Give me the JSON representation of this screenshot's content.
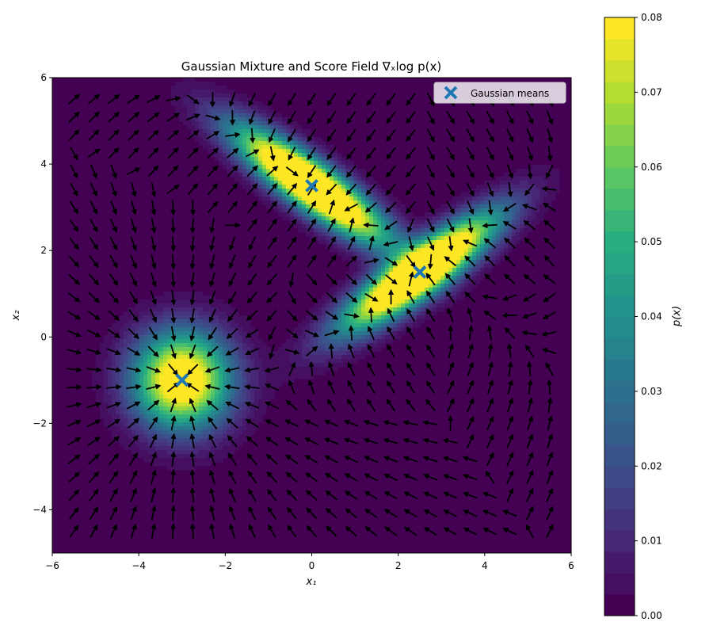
{
  "chart_data": {
    "type": "contour",
    "title": "Gaussian Mixture and Score Field ∇ₓlog p(x)",
    "xlabel": "x₁",
    "ylabel": "x₂",
    "xlim": [
      -6,
      6
    ],
    "ylim": [
      -5,
      6
    ],
    "xticks": [
      "−6",
      "−4",
      "−2",
      "0",
      "2",
      "4",
      "6"
    ],
    "yticks": [
      "−4",
      "−2",
      "0",
      "2",
      "4",
      "6"
    ],
    "colorbar": {
      "label": "p(x)",
      "range": [
        0,
        0.08
      ],
      "ticks": [
        "0.00",
        "0.01",
        "0.02",
        "0.03",
        "0.04",
        "0.05",
        "0.06",
        "0.07",
        "0.08"
      ],
      "colormap": "viridis"
    },
    "legend": {
      "entries": [
        "Gaussian means"
      ],
      "placement": "top-right"
    },
    "gaussian_means": [
      {
        "x": -3,
        "y": -1
      },
      {
        "x": 0,
        "y": 3.5
      },
      {
        "x": 2.5,
        "y": 1.5
      }
    ],
    "marker_color": "#1f77b4",
    "score_field": {
      "type": "quiver",
      "arrow_color": "#000000"
    }
  }
}
